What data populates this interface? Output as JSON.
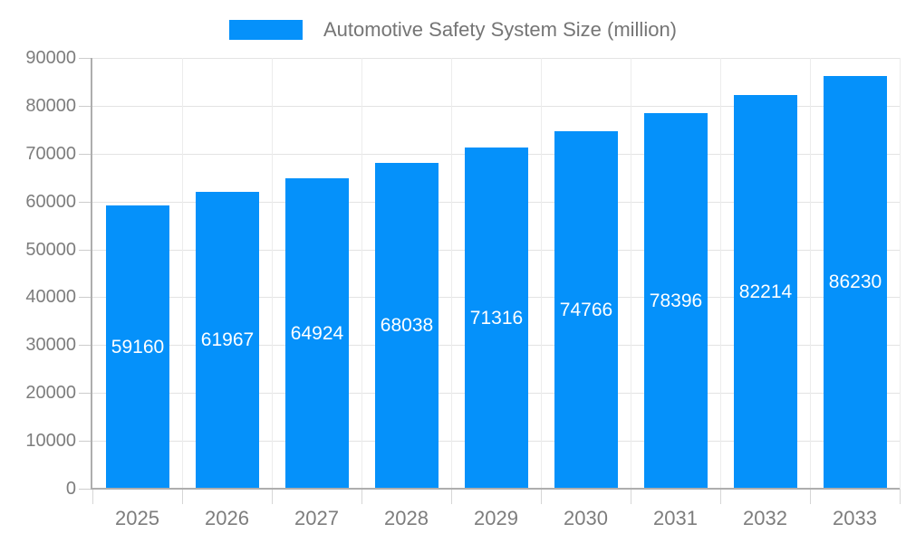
{
  "chart_data": {
    "type": "bar",
    "title": "",
    "legend_label": "Automotive Safety System Size (million)",
    "legend_position": "top",
    "categories": [
      "2025",
      "2026",
      "2027",
      "2028",
      "2029",
      "2030",
      "2031",
      "2032",
      "2033"
    ],
    "series": [
      {
        "name": "Automotive Safety System Size (million)",
        "values": [
          59160,
          61967,
          64924,
          68038,
          71316,
          74766,
          78396,
          82214,
          86230
        ]
      }
    ],
    "value_labels": [
      "59160",
      "61967",
      "64924",
      "68038",
      "71316",
      "74766",
      "78396",
      "82214",
      "86230"
    ],
    "xlabel": "",
    "ylabel": "",
    "ylim": [
      0,
      90000
    ],
    "ytick_step": 10000,
    "ytick_labels": [
      "0",
      "10000",
      "20000",
      "30000",
      "40000",
      "50000",
      "60000",
      "70000",
      "80000",
      "90000"
    ],
    "grid": true,
    "colors": {
      "bar": "#0591fa",
      "value_label_text": "#ffffff",
      "axis_text": "#7d7d7d",
      "legend_text": "#757575",
      "gridline": "#e3e3e3",
      "axis_line": "#aeaeae"
    }
  }
}
